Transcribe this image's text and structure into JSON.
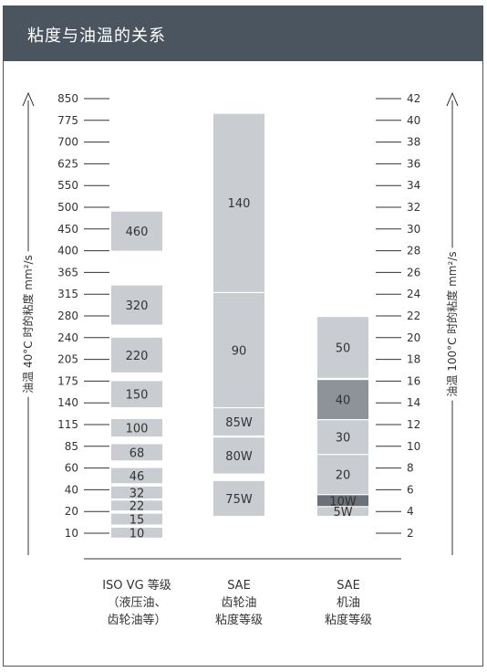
{
  "header": {
    "title": "粘度与油温的关系"
  },
  "colors": {
    "header_bg": "#4b555f",
    "bar": "#c9ccd0",
    "bar_dark1": "#8d9399",
    "bar_dark2": "#6b7178",
    "tick_line": "#333333"
  },
  "chart_data": {
    "type": "bar",
    "left_axis": {
      "label": "油温 40°C 时的粘度 mm²/s",
      "ticks": [
        "850",
        "775",
        "700",
        "625",
        "550",
        "500",
        "450",
        "400",
        "365",
        "315",
        "280",
        "240",
        "205",
        "175",
        "140",
        "115",
        "85",
        "60",
        "40",
        "20",
        "10"
      ]
    },
    "right_axis": {
      "label": "油温 100°C 时的粘度 mm²/s",
      "ticks": [
        "42",
        "40",
        "38",
        "36",
        "34",
        "32",
        "30",
        "28",
        "26",
        "24",
        "22",
        "20",
        "18",
        "16",
        "14",
        "12",
        "10",
        "8",
        "6",
        "4",
        "2"
      ]
    },
    "categories": [
      {
        "lines": [
          "ISO VG 等级",
          "（液压油、",
          "齿轮油等）"
        ]
      },
      {
        "lines": [
          "SAE",
          "齿轮油",
          "粘度等级"
        ]
      },
      {
        "lines": [
          "SAE",
          "机油",
          "粘度等级"
        ]
      }
    ],
    "series": [
      {
        "grades": [
          {
            "label": "460",
            "from": 28,
            "to": 31.6,
            "shade": "normal"
          },
          {
            "label": "320",
            "from": 21.2,
            "to": 24.8,
            "shade": "normal"
          },
          {
            "label": "220",
            "from": 16.8,
            "to": 20,
            "shade": "normal"
          },
          {
            "label": "150",
            "from": 13.6,
            "to": 16,
            "shade": "normal"
          },
          {
            "label": "100",
            "from": 10.9,
            "to": 12.5,
            "shade": "normal"
          },
          {
            "label": "68",
            "from": 8.7,
            "to": 10.2,
            "shade": "normal"
          },
          {
            "label": "46",
            "from": 6.6,
            "to": 8,
            "shade": "normal"
          },
          {
            "label": "32",
            "from": 5.2,
            "to": 6.3,
            "shade": "normal"
          },
          {
            "label": "22",
            "from": 4.1,
            "to": 5,
            "shade": "normal"
          },
          {
            "label": "15",
            "from": 2.8,
            "to": 3.8,
            "shade": "normal"
          },
          {
            "label": "10",
            "from": 1.6,
            "to": 2.5,
            "shade": "normal"
          }
        ]
      },
      {
        "grades": [
          {
            "label": "140",
            "from": 24.2,
            "to": 40.6,
            "shade": "normal"
          },
          {
            "label": "90",
            "from": 13.6,
            "to": 24.1,
            "shade": "normal"
          },
          {
            "label": "85W",
            "from": 11,
            "to": 13.5,
            "shade": "normal"
          },
          {
            "label": "80W",
            "from": 7.5,
            "to": 10.8,
            "shade": "normal"
          },
          {
            "label": "75W",
            "from": 3.6,
            "to": 6.8,
            "shade": "normal"
          }
        ]
      },
      {
        "grades": [
          {
            "label": "50",
            "from": 16.3,
            "to": 21.9,
            "shade": "normal"
          },
          {
            "label": "40",
            "from": 12.5,
            "to": 16.1,
            "shade": "dark1"
          },
          {
            "label": "30",
            "from": 9.3,
            "to": 12.4,
            "shade": "normal"
          },
          {
            "label": "20",
            "from": 5.6,
            "to": 9.2,
            "shade": "normal"
          },
          {
            "label": "10W",
            "from": 4.5,
            "to": 5.5,
            "shade": "dark2"
          },
          {
            "label": "5W",
            "from": 3.6,
            "to": 4.4,
            "shade": "normal"
          }
        ]
      }
    ]
  }
}
